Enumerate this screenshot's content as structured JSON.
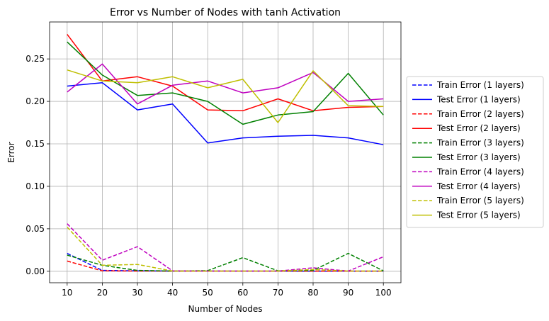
{
  "chart_data": {
    "type": "line",
    "title": "Error vs Number of Nodes with tanh Activation",
    "xlabel": "Number of Nodes",
    "ylabel": "Error",
    "x": [
      10,
      20,
      30,
      40,
      50,
      60,
      70,
      80,
      90,
      100
    ],
    "x_ticks": [
      "10",
      "20",
      "30",
      "40",
      "50",
      "60",
      "70",
      "80",
      "90",
      "100"
    ],
    "y_ticks": [
      "0.00",
      "0.05",
      "0.10",
      "0.15",
      "0.20",
      "0.25"
    ],
    "y_tick_values": [
      0.0,
      0.05,
      0.1,
      0.15,
      0.2,
      0.25
    ],
    "xlim": [
      5,
      105
    ],
    "ylim": [
      -0.0135,
      0.2935
    ],
    "grid": true,
    "legend_position": "outside-right",
    "series": [
      {
        "name": "Train Error (1 layers)",
        "color": "#0000ff",
        "style": "dashed",
        "values": [
          0.021,
          0.001,
          0.0005,
          0.0003,
          0.0003,
          0.0002,
          0.0002,
          0.0002,
          0.0002,
          0.0002
        ]
      },
      {
        "name": "Test Error (1 layers)",
        "color": "#0000ff",
        "style": "solid",
        "values": [
          0.218,
          0.222,
          0.19,
          0.197,
          0.151,
          0.157,
          0.159,
          0.16,
          0.157,
          0.149
        ]
      },
      {
        "name": "Train Error (2 layers)",
        "color": "#ff0000",
        "style": "dashed",
        "values": [
          0.012,
          0.0005,
          0.0003,
          0.0002,
          0.0002,
          0.0002,
          0.0002,
          0.0002,
          0.0002,
          0.0002
        ]
      },
      {
        "name": "Test Error (2 layers)",
        "color": "#ff0000",
        "style": "solid",
        "values": [
          0.279,
          0.224,
          0.229,
          0.218,
          0.19,
          0.189,
          0.203,
          0.189,
          0.193,
          0.194
        ]
      },
      {
        "name": "Train Error (3 layers)",
        "color": "#008000",
        "style": "dashed",
        "values": [
          0.019,
          0.007,
          0.001,
          0.0003,
          0.0008,
          0.016,
          0.0005,
          0.001,
          0.021,
          0.0005
        ]
      },
      {
        "name": "Test Error (3 layers)",
        "color": "#008000",
        "style": "solid",
        "values": [
          0.27,
          0.231,
          0.207,
          0.21,
          0.2,
          0.173,
          0.184,
          0.188,
          0.233,
          0.184
        ]
      },
      {
        "name": "Train Error (4 layers)",
        "color": "#bf00bf",
        "style": "dashed",
        "values": [
          0.056,
          0.013,
          0.029,
          0.0005,
          0.0003,
          0.0003,
          0.0003,
          0.004,
          0.0003,
          0.017
        ]
      },
      {
        "name": "Test Error (4 layers)",
        "color": "#bf00bf",
        "style": "solid",
        "values": [
          0.211,
          0.244,
          0.197,
          0.219,
          0.224,
          0.21,
          0.216,
          0.234,
          0.2,
          0.203
        ]
      },
      {
        "name": "Train Error (5 layers)",
        "color": "#bfbf00",
        "style": "dashed",
        "values": [
          0.052,
          0.007,
          0.008,
          0.0003,
          0.0003,
          0.0003,
          0.0003,
          0.002,
          0.0003,
          0.0003
        ]
      },
      {
        "name": "Test Error (5 layers)",
        "color": "#bfbf00",
        "style": "solid",
        "values": [
          0.237,
          0.224,
          0.222,
          0.229,
          0.216,
          0.226,
          0.175,
          0.236,
          0.195,
          0.194
        ]
      }
    ]
  }
}
